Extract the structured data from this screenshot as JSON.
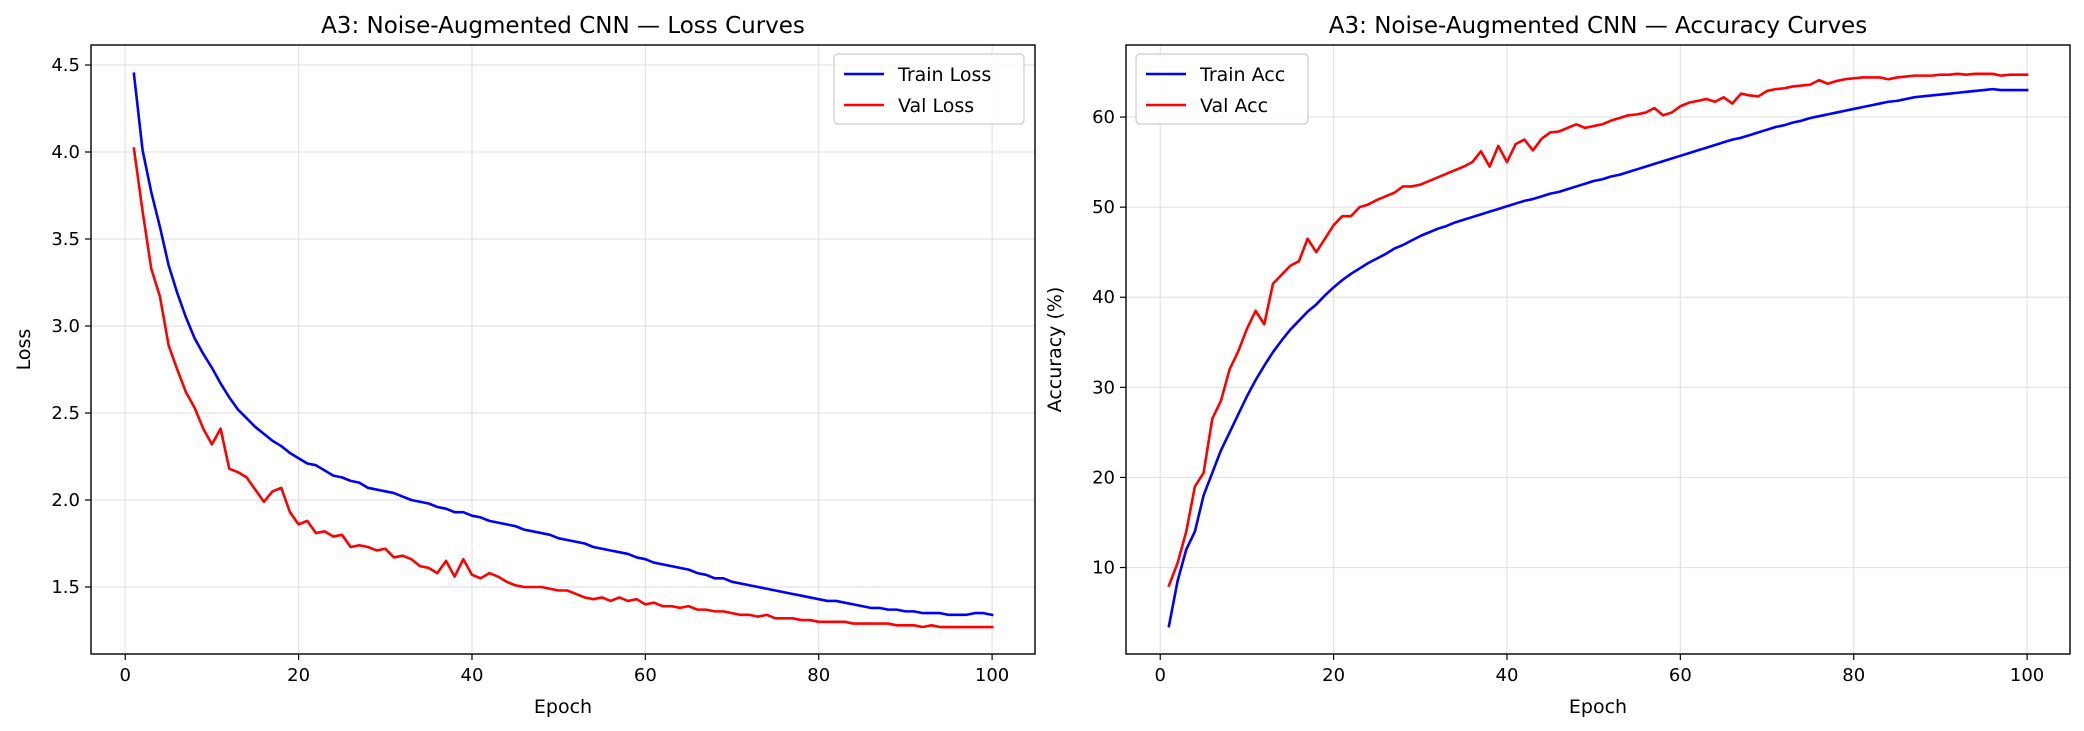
{
  "chart_data": [
    {
      "type": "line",
      "title": "A3: Noise-Augmented CNN — Loss Curves",
      "xlabel": "Epoch",
      "ylabel": "Loss",
      "xlim": [
        -3.95,
        104.95
      ],
      "ylim": [
        1.115,
        4.615
      ],
      "xticks": [
        0,
        20,
        40,
        60,
        80,
        100
      ],
      "yticks": [
        1.5,
        2.0,
        2.5,
        3.0,
        3.5,
        4.0,
        4.5
      ],
      "ytick_decimals": 1,
      "grid": true,
      "legend_position": "top-right",
      "x": [
        1,
        2,
        3,
        4,
        5,
        6,
        7,
        8,
        9,
        10,
        11,
        12,
        13,
        14,
        15,
        16,
        17,
        18,
        19,
        20,
        21,
        22,
        23,
        24,
        25,
        26,
        27,
        28,
        29,
        30,
        31,
        32,
        33,
        34,
        35,
        36,
        37,
        38,
        39,
        40,
        41,
        42,
        43,
        44,
        45,
        46,
        47,
        48,
        49,
        50,
        51,
        52,
        53,
        54,
        55,
        56,
        57,
        58,
        59,
        60,
        61,
        62,
        63,
        64,
        65,
        66,
        67,
        68,
        69,
        70,
        71,
        72,
        73,
        74,
        75,
        76,
        77,
        78,
        79,
        80,
        81,
        82,
        83,
        84,
        85,
        86,
        87,
        88,
        89,
        90,
        91,
        92,
        93,
        94,
        95,
        96,
        97,
        98,
        99,
        100
      ],
      "series": [
        {
          "name": "Train Loss",
          "color": "#0000ff",
          "values": [
            4.45,
            4.01,
            3.77,
            3.57,
            3.35,
            3.19,
            3.05,
            2.93,
            2.84,
            2.76,
            2.67,
            2.59,
            2.52,
            2.47,
            2.42,
            2.38,
            2.34,
            2.31,
            2.27,
            2.24,
            2.21,
            2.2,
            2.17,
            2.14,
            2.13,
            2.11,
            2.1,
            2.07,
            2.06,
            2.05,
            2.04,
            2.02,
            2.0,
            1.99,
            1.98,
            1.96,
            1.95,
            1.93,
            1.93,
            1.91,
            1.9,
            1.88,
            1.87,
            1.86,
            1.85,
            1.83,
            1.82,
            1.81,
            1.8,
            1.78,
            1.77,
            1.76,
            1.75,
            1.73,
            1.72,
            1.71,
            1.7,
            1.69,
            1.67,
            1.66,
            1.64,
            1.63,
            1.62,
            1.61,
            1.6,
            1.58,
            1.57,
            1.55,
            1.55,
            1.53,
            1.52,
            1.51,
            1.5,
            1.49,
            1.48,
            1.47,
            1.46,
            1.45,
            1.44,
            1.43,
            1.42,
            1.42,
            1.41,
            1.4,
            1.39,
            1.38,
            1.38,
            1.37,
            1.37,
            1.36,
            1.36,
            1.35,
            1.35,
            1.35,
            1.34,
            1.34,
            1.34,
            1.35,
            1.35,
            1.34
          ]
        },
        {
          "name": "Val Loss",
          "color": "#ff0000",
          "values": [
            4.02,
            3.66,
            3.33,
            3.17,
            2.89,
            2.75,
            2.62,
            2.53,
            2.41,
            2.32,
            2.41,
            2.18,
            2.16,
            2.13,
            2.06,
            1.99,
            2.05,
            2.07,
            1.93,
            1.86,
            1.88,
            1.81,
            1.82,
            1.79,
            1.8,
            1.73,
            1.74,
            1.73,
            1.71,
            1.72,
            1.67,
            1.68,
            1.66,
            1.62,
            1.61,
            1.58,
            1.65,
            1.56,
            1.66,
            1.57,
            1.55,
            1.58,
            1.56,
            1.53,
            1.51,
            1.5,
            1.5,
            1.5,
            1.49,
            1.48,
            1.48,
            1.46,
            1.44,
            1.43,
            1.44,
            1.42,
            1.44,
            1.42,
            1.43,
            1.4,
            1.41,
            1.39,
            1.39,
            1.38,
            1.39,
            1.37,
            1.37,
            1.36,
            1.36,
            1.35,
            1.34,
            1.34,
            1.33,
            1.34,
            1.32,
            1.32,
            1.32,
            1.31,
            1.31,
            1.3,
            1.3,
            1.3,
            1.3,
            1.29,
            1.29,
            1.29,
            1.29,
            1.29,
            1.28,
            1.28,
            1.28,
            1.27,
            1.28,
            1.27,
            1.27,
            1.27,
            1.27,
            1.27,
            1.27,
            1.27
          ]
        }
      ]
    },
    {
      "type": "line",
      "title": "A3: Noise-Augmented CNN — Accuracy Curves",
      "xlabel": "Epoch",
      "ylabel": "Accuracy (%)",
      "xlim": [
        -3.95,
        104.95
      ],
      "ylim": [
        0.4,
        68.0
      ],
      "xticks": [
        0,
        20,
        40,
        60,
        80,
        100
      ],
      "yticks": [
        10,
        20,
        30,
        40,
        50,
        60
      ],
      "ytick_decimals": 0,
      "grid": true,
      "legend_position": "top-left",
      "x": [
        1,
        2,
        3,
        4,
        5,
        6,
        7,
        8,
        9,
        10,
        11,
        12,
        13,
        14,
        15,
        16,
        17,
        18,
        19,
        20,
        21,
        22,
        23,
        24,
        25,
        26,
        27,
        28,
        29,
        30,
        31,
        32,
        33,
        34,
        35,
        36,
        37,
        38,
        39,
        40,
        41,
        42,
        43,
        44,
        45,
        46,
        47,
        48,
        49,
        50,
        51,
        52,
        53,
        54,
        55,
        56,
        57,
        58,
        59,
        60,
        61,
        62,
        63,
        64,
        65,
        66,
        67,
        68,
        69,
        70,
        71,
        72,
        73,
        74,
        75,
        76,
        77,
        78,
        79,
        80,
        81,
        82,
        83,
        84,
        85,
        86,
        87,
        88,
        89,
        90,
        91,
        92,
        93,
        94,
        95,
        96,
        97,
        98,
        99,
        100
      ],
      "series": [
        {
          "name": "Train Acc",
          "color": "#0000ff",
          "values": [
            3.5,
            8.5,
            12.0,
            14.0,
            18.0,
            20.5,
            23.0,
            25.0,
            27.0,
            29.0,
            30.8,
            32.4,
            33.9,
            35.2,
            36.4,
            37.4,
            38.4,
            39.2,
            40.2,
            41.1,
            41.9,
            42.6,
            43.2,
            43.8,
            44.3,
            44.8,
            45.4,
            45.8,
            46.3,
            46.8,
            47.2,
            47.6,
            47.9,
            48.3,
            48.6,
            48.9,
            49.2,
            49.5,
            49.8,
            50.1,
            50.4,
            50.7,
            50.9,
            51.2,
            51.5,
            51.7,
            52.0,
            52.3,
            52.6,
            52.9,
            53.1,
            53.4,
            53.6,
            53.9,
            54.2,
            54.5,
            54.8,
            55.1,
            55.4,
            55.7,
            56.0,
            56.3,
            56.6,
            56.9,
            57.2,
            57.5,
            57.7,
            58.0,
            58.3,
            58.6,
            58.9,
            59.1,
            59.4,
            59.6,
            59.9,
            60.1,
            60.3,
            60.5,
            60.7,
            60.9,
            61.1,
            61.3,
            61.5,
            61.7,
            61.8,
            62.0,
            62.2,
            62.3,
            62.4,
            62.5,
            62.6,
            62.7,
            62.8,
            62.9,
            63.0,
            63.1,
            63.0,
            63.0,
            63.0,
            63.0
          ]
        },
        {
          "name": "Val Acc",
          "color": "#ff0000",
          "values": [
            8.0,
            10.5,
            14.0,
            19.0,
            20.5,
            26.5,
            28.5,
            32.0,
            34.0,
            36.5,
            38.5,
            37.0,
            41.5,
            42.5,
            43.5,
            44.0,
            46.5,
            45.0,
            46.5,
            48.0,
            49.0,
            49.0,
            50.0,
            50.3,
            50.8,
            51.2,
            51.6,
            52.3,
            52.3,
            52.5,
            52.9,
            53.3,
            53.7,
            54.1,
            54.5,
            55.0,
            56.2,
            54.5,
            56.8,
            55.0,
            57.0,
            57.5,
            56.3,
            57.6,
            58.3,
            58.4,
            58.8,
            59.2,
            58.8,
            59.0,
            59.2,
            59.6,
            59.9,
            60.2,
            60.3,
            60.5,
            61.0,
            60.2,
            60.5,
            61.2,
            61.6,
            61.8,
            62.0,
            61.7,
            62.2,
            61.5,
            62.6,
            62.4,
            62.3,
            62.9,
            63.1,
            63.2,
            63.4,
            63.5,
            63.6,
            64.1,
            63.7,
            64.0,
            64.2,
            64.3,
            64.4,
            64.4,
            64.4,
            64.2,
            64.4,
            64.5,
            64.6,
            64.6,
            64.6,
            64.7,
            64.7,
            64.8,
            64.7,
            64.8,
            64.8,
            64.8,
            64.6,
            64.7,
            64.7,
            64.7
          ]
        }
      ]
    }
  ]
}
